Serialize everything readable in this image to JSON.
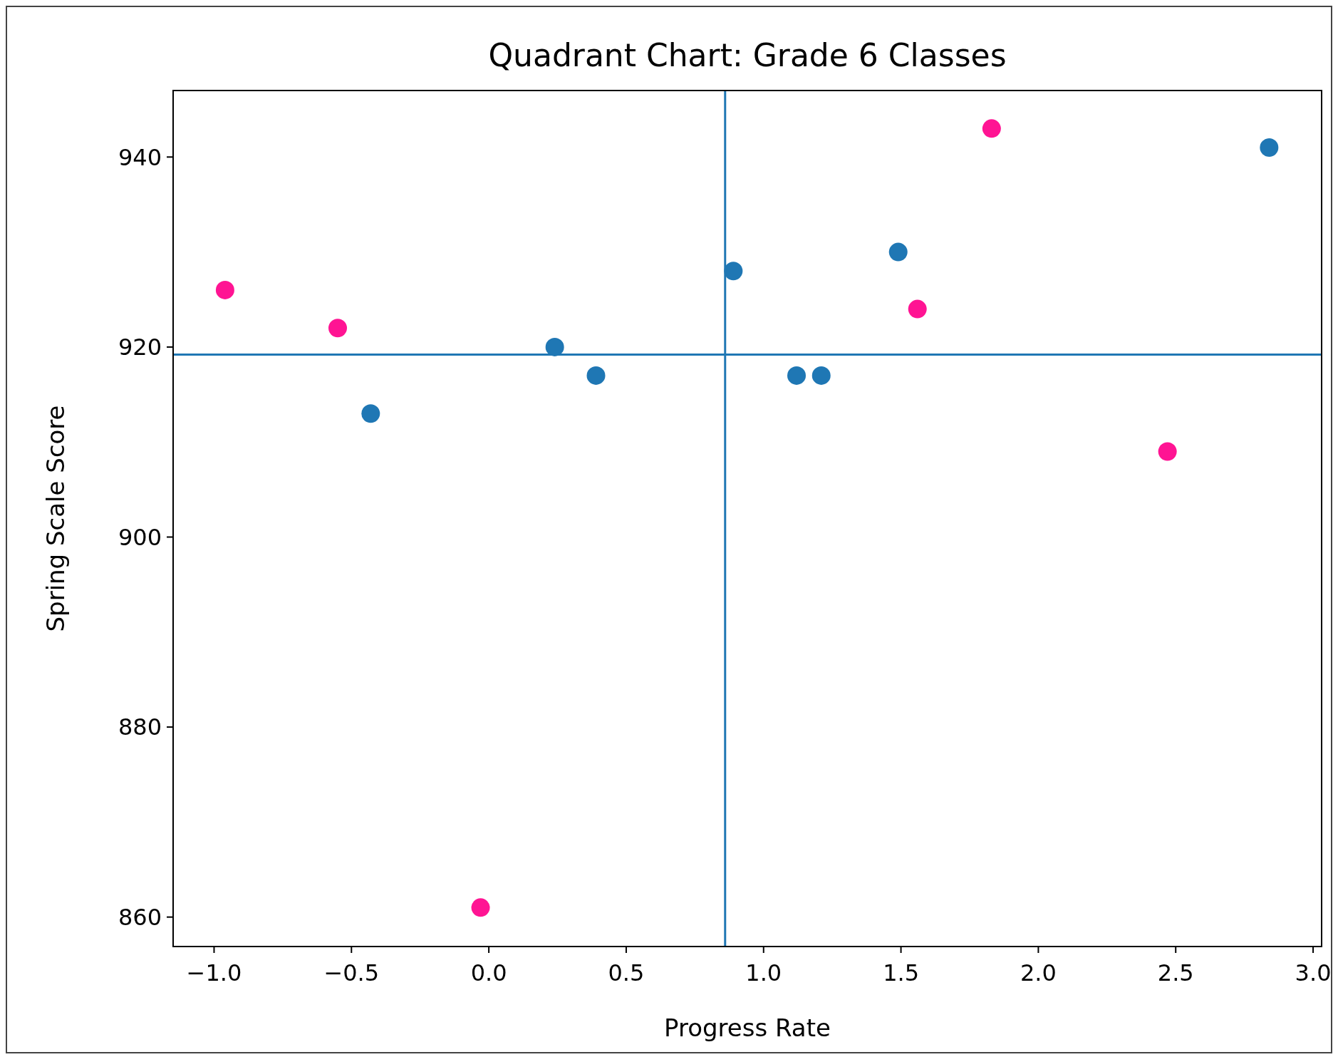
{
  "chart_data": {
    "type": "scatter",
    "title": "Quadrant Chart: Grade 6 Classes",
    "xlabel": "Progress Rate",
    "ylabel": "Spring Scale Score",
    "xlim": [
      -1.149,
      3.031
    ],
    "ylim": [
      856.9,
      947
    ],
    "xticks": [
      {
        "value": -1,
        "label": "−1.0"
      },
      {
        "value": -0.5,
        "label": "−0.5"
      },
      {
        "value": 0,
        "label": "0.0"
      },
      {
        "value": 0.5,
        "label": "0.5"
      },
      {
        "value": 1,
        "label": "1.0"
      },
      {
        "value": 1.5,
        "label": "1.5"
      },
      {
        "value": 2,
        "label": "2.0"
      },
      {
        "value": 2.5,
        "label": "2.5"
      },
      {
        "value": 3,
        "label": "3.0"
      }
    ],
    "yticks": [
      860,
      880,
      900,
      920,
      940
    ],
    "marker": "circle",
    "series": [
      {
        "color": "#1f77b4",
        "x": [
          -0.43,
          0.24,
          0.39,
          0.89,
          1.12,
          1.21,
          1.49,
          2.84
        ],
        "values": [
          913,
          920,
          917,
          928,
          917,
          917,
          930,
          941
        ]
      },
      {
        "color": "#ff1493",
        "x": [
          -0.96,
          -0.55,
          -0.03,
          1.83,
          1.56,
          2.47
        ],
        "values": [
          926,
          922,
          861,
          943,
          924,
          909
        ]
      }
    ],
    "ref_lines": [
      {
        "axis": "x",
        "value": 0.86,
        "color": "#1f77b4"
      },
      {
        "axis": "y",
        "value": 919.2,
        "color": "#1f77b4"
      }
    ]
  }
}
